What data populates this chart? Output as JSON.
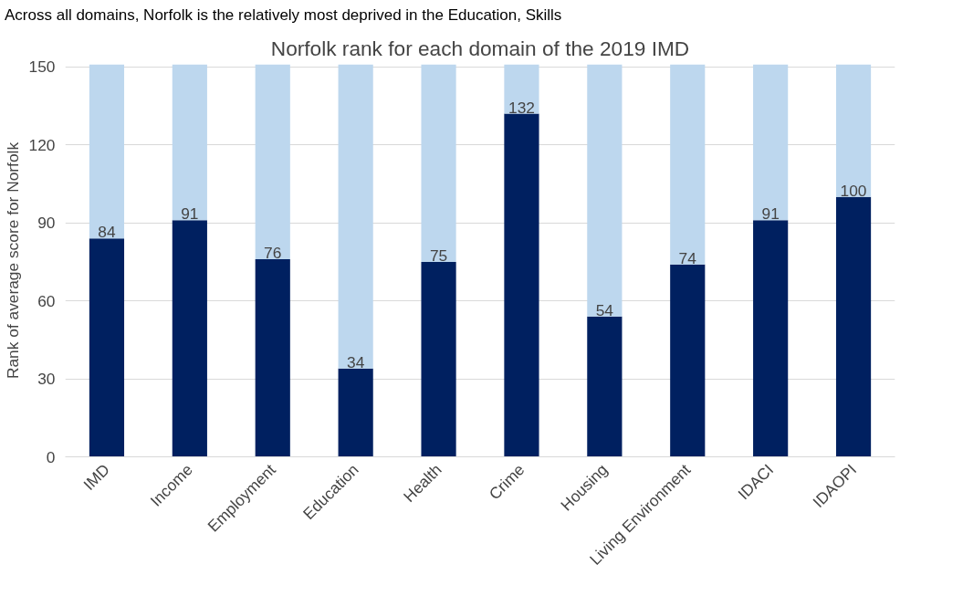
{
  "chart_data": {
    "type": "bar",
    "stacked": true,
    "title": "Norfolk rank for each domain of the 2019 IMD",
    "ylabel": "Rank of average score for Norfolk",
    "annotations": [
      "Across all domains, Norfolk is the relatively most deprived in the Education, Skills"
    ],
    "categories": [
      "IMD",
      "Income",
      "Employment",
      "Education",
      "Health",
      "Crime",
      "Housing",
      "Living Environment",
      "IDACI",
      "IDAOPI"
    ],
    "series": [
      {
        "color": "#002060",
        "values": [
          84,
          91,
          76,
          34,
          75,
          132,
          54,
          74,
          91,
          100
        ],
        "value_labels": [
          "84",
          "91",
          "76",
          "34",
          "75",
          "132",
          "54",
          "74",
          "91",
          "100"
        ]
      },
      {
        "color": "#bdd7ee",
        "values": [
          67,
          60,
          75,
          117,
          76,
          19,
          97,
          77,
          60,
          51
        ]
      }
    ],
    "ylim": [
      0,
      151
    ],
    "yticks": [
      0,
      30,
      60,
      90,
      120,
      150
    ],
    "grid": "y"
  }
}
